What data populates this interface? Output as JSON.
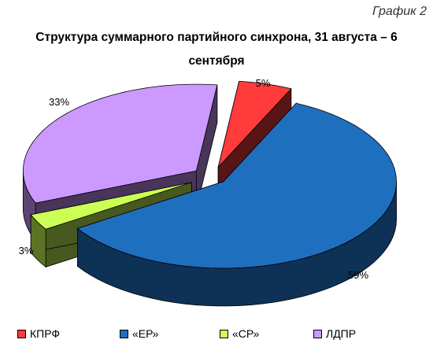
{
  "header": {
    "caption": "График 2",
    "title_line1": "Структура суммарного партийного синхрона, 31 августа – 6",
    "title_line2": "сентября"
  },
  "colors": {
    "КПРФ": "#ff3b3b",
    "«ЕР»": "#1f6fbf",
    "«СР»": "#ccff55",
    "ЛДПР": "#cc99ff"
  },
  "chart_data": {
    "type": "pie",
    "title": "Структура суммарного партийного синхрона, 31 августа – 6 сентября",
    "categories": [
      "КПРФ",
      "«ЕР»",
      "«СР»",
      "ЛДПР"
    ],
    "values": [
      5,
      59,
      3,
      33
    ],
    "data_labels": [
      "5%",
      "59%",
      "3%",
      "33%"
    ],
    "three_d": true,
    "legend": "bottom"
  }
}
